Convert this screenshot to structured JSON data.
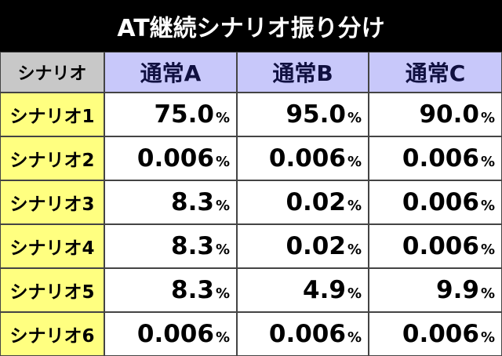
{
  "header": {
    "title": "AT継続シナリオ振り分け"
  },
  "table": {
    "columns": [
      "シナリオ",
      "通常A",
      "通常B",
      "通常C"
    ],
    "rows": [
      {
        "label": "シナリオ1",
        "cells": [
          {
            "value": "75.0",
            "unit": "%"
          },
          {
            "value": "95.0",
            "unit": "%"
          },
          {
            "value": "90.0",
            "unit": "%"
          }
        ]
      },
      {
        "label": "シナリオ2",
        "cells": [
          {
            "value": "0.006",
            "unit": "%"
          },
          {
            "value": "0.006",
            "unit": "%"
          },
          {
            "value": "0.006",
            "unit": "%"
          }
        ]
      },
      {
        "label": "シナリオ3",
        "cells": [
          {
            "value": "8.3",
            "unit": "%"
          },
          {
            "value": "0.02",
            "unit": "%"
          },
          {
            "value": "0.006",
            "unit": "%"
          }
        ]
      },
      {
        "label": "シナリオ4",
        "cells": [
          {
            "value": "8.3",
            "unit": "%"
          },
          {
            "value": "0.02",
            "unit": "%"
          },
          {
            "value": "0.006",
            "unit": "%"
          }
        ]
      },
      {
        "label": "シナリオ5",
        "cells": [
          {
            "value": "8.3",
            "unit": "%"
          },
          {
            "value": "4.9",
            "unit": "%"
          },
          {
            "value": "9.9",
            "unit": "%"
          }
        ]
      },
      {
        "label": "シナリオ6",
        "cells": [
          {
            "value": "0.006",
            "unit": "%"
          },
          {
            "value": "0.006",
            "unit": "%"
          },
          {
            "value": "0.006",
            "unit": "%"
          }
        ]
      }
    ]
  }
}
